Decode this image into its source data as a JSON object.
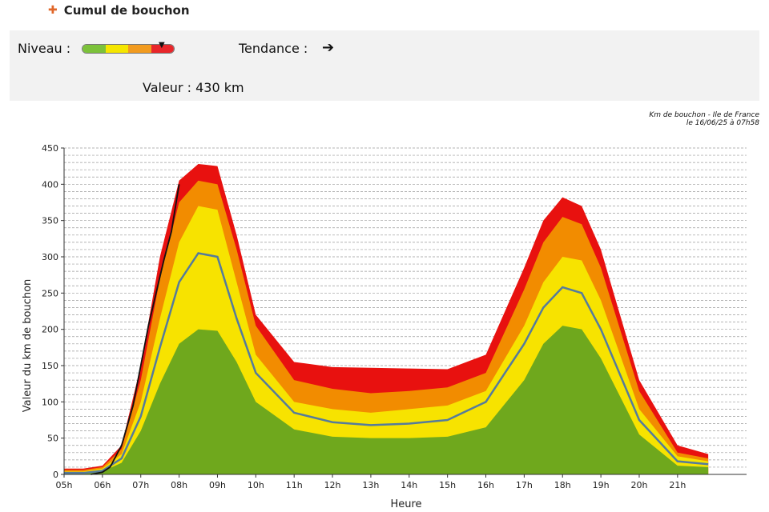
{
  "header": {
    "title": "Cumul de bouchon",
    "icon": "traffic-cross-icon"
  },
  "panel": {
    "niveau_label": "Niveau :",
    "gauge_colors": [
      "#7cc23a",
      "#f5e600",
      "#f29b1f",
      "#e8262a"
    ],
    "tendance_label": "Tendance :",
    "trend_arrow": "➔",
    "valeur_text": "Valeur : 430 km"
  },
  "caption": {
    "line1": "Km de bouchon - Ile de France",
    "line2": "le 16/06/25 à 07h58"
  },
  "chart_data": {
    "type": "area",
    "xlabel": "Heure",
    "ylabel": "Valeur du  km de bouchon",
    "x_ticks": [
      "05h",
      "06h",
      "07h",
      "08h",
      "09h",
      "10h",
      "11h",
      "12h",
      "13h",
      "14h",
      "15h",
      "16h",
      "17h",
      "18h",
      "19h",
      "20h",
      "21h"
    ],
    "y_ticks": [
      0,
      50,
      100,
      150,
      200,
      250,
      300,
      350,
      400,
      450
    ],
    "ylim": [
      0,
      450
    ],
    "xlim": [
      5,
      22.8
    ],
    "grid": "horizontal dashed",
    "bands": [
      {
        "color": "#e8110f",
        "x": [
          5,
          5.5,
          6,
          6.5,
          7,
          7.5,
          8,
          8.5,
          9,
          9.5,
          10,
          11,
          12,
          13,
          14,
          15,
          16,
          17,
          17.5,
          18,
          18.5,
          19,
          20,
          21,
          21.8
        ],
        "y": [
          8,
          8,
          12,
          40,
          150,
          300,
          405,
          428,
          425,
          330,
          220,
          155,
          148,
          147,
          146,
          145,
          165,
          285,
          350,
          382,
          370,
          310,
          130,
          40,
          28
        ]
      },
      {
        "color": "#f28c00",
        "x": [
          5,
          5.5,
          6,
          6.5,
          7,
          7.5,
          8,
          8.5,
          9,
          9.5,
          10,
          11,
          12,
          13,
          14,
          15,
          16,
          17,
          17.5,
          18,
          18.5,
          19,
          20,
          21,
          21.8
        ],
        "y": [
          6,
          6,
          10,
          35,
          130,
          270,
          375,
          405,
          400,
          310,
          205,
          130,
          118,
          112,
          115,
          120,
          140,
          255,
          320,
          355,
          345,
          285,
          115,
          30,
          22
        ]
      },
      {
        "color": "#f7e300",
        "x": [
          5,
          5.5,
          6,
          6.5,
          7,
          7.5,
          8,
          8.5,
          9,
          9.5,
          10,
          11,
          12,
          13,
          14,
          15,
          16,
          17,
          17.5,
          18,
          18.5,
          19,
          20,
          21,
          21.8
        ],
        "y": [
          4,
          4,
          8,
          28,
          100,
          215,
          320,
          370,
          365,
          265,
          165,
          100,
          90,
          85,
          90,
          95,
          115,
          205,
          265,
          300,
          295,
          240,
          90,
          25,
          18
        ]
      },
      {
        "color": "#6fa81d",
        "x": [
          5,
          5.5,
          6,
          6.5,
          7,
          7.5,
          8,
          8.5,
          9,
          9.5,
          10,
          11,
          12,
          13,
          14,
          15,
          16,
          17,
          17.5,
          18,
          18.5,
          19,
          20,
          21,
          21.8
        ],
        "y": [
          2,
          2,
          4,
          16,
          60,
          125,
          180,
          200,
          198,
          155,
          100,
          62,
          52,
          50,
          50,
          52,
          65,
          130,
          180,
          205,
          200,
          160,
          55,
          12,
          10
        ]
      }
    ],
    "series": [
      {
        "name": "",
        "color": "#557b9c",
        "x": [
          5,
          5.5,
          6,
          6.5,
          7,
          7.5,
          8,
          8.5,
          9,
          9.5,
          10,
          11,
          12,
          13,
          14,
          15,
          16,
          17,
          17.5,
          18,
          18.5,
          19,
          20,
          21,
          21.8
        ],
        "y": [
          2,
          2,
          5,
          22,
          80,
          175,
          265,
          305,
          300,
          215,
          140,
          85,
          72,
          68,
          70,
          75,
          100,
          180,
          230,
          258,
          250,
          200,
          75,
          18,
          14
        ]
      },
      {
        "name": "",
        "color": "#111111",
        "x": [
          5.7,
          6,
          6.2,
          6.5,
          6.8,
          7,
          7.2,
          7.4,
          7.6,
          7.8,
          8
        ],
        "y": [
          0,
          3,
          10,
          40,
          95,
          150,
          205,
          250,
          295,
          335,
          400
        ]
      }
    ]
  }
}
